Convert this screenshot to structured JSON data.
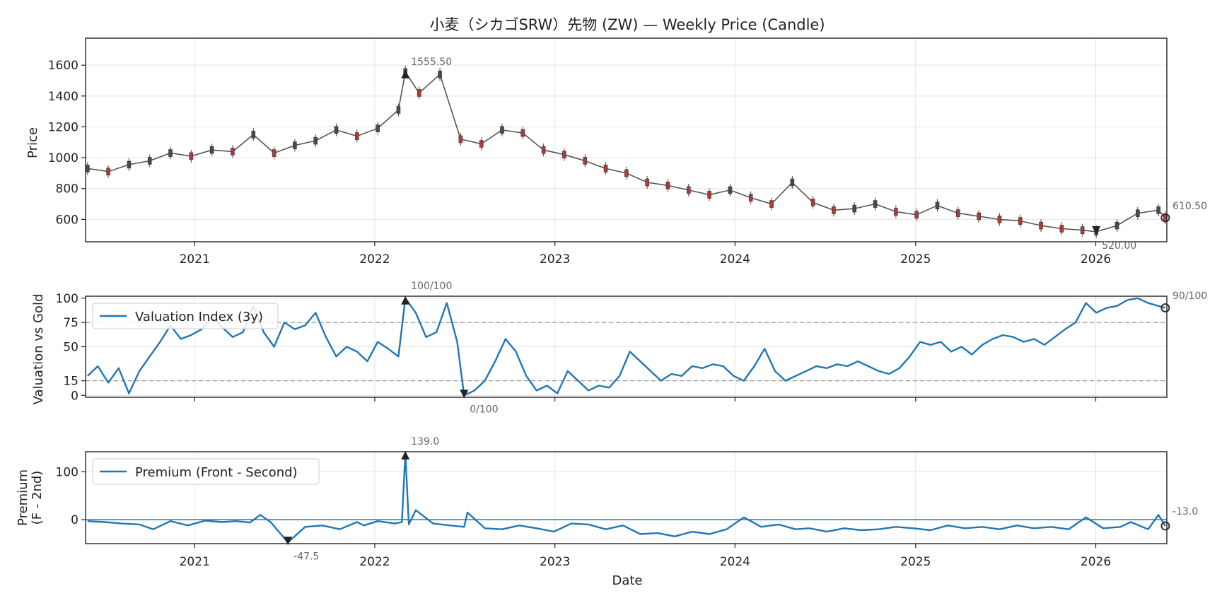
{
  "chart_data": [
    {
      "type": "candlestick",
      "title": "小麦（シカゴSRW）先物 (ZW) — Weekly Price (Candle)",
      "ylabel": "Price",
      "ylim": [
        455,
        1775
      ],
      "yticks": [
        600,
        800,
        1000,
        1200,
        1400,
        1600
      ],
      "xlim": [
        "2020-05-25",
        "2026-05-25"
      ],
      "xticks": [
        "2021",
        "2022",
        "2023",
        "2024",
        "2025",
        "2026"
      ],
      "grid": true,
      "series": [
        {
          "x": [
            "2020-05-29",
            "2020-07-10",
            "2020-08-21",
            "2020-10-02",
            "2020-11-13",
            "2020-12-25",
            "2021-02-05",
            "2021-03-19",
            "2021-04-30",
            "2021-06-11",
            "2021-07-23",
            "2021-09-03",
            "2021-10-15",
            "2021-11-26",
            "2022-01-07",
            "2022-02-18",
            "2022-03-04",
            "2022-04-01",
            "2022-05-13",
            "2022-06-24",
            "2022-08-05",
            "2022-09-16",
            "2022-10-28",
            "2022-12-09",
            "2023-01-20",
            "2023-03-03",
            "2023-04-14",
            "2023-05-26",
            "2023-07-07",
            "2023-08-18",
            "2023-09-29",
            "2023-11-10",
            "2023-12-22",
            "2024-02-02",
            "2024-03-15",
            "2024-04-26",
            "2024-06-07",
            "2024-07-19",
            "2024-08-30",
            "2024-10-11",
            "2024-11-22",
            "2025-01-03",
            "2025-02-14",
            "2025-03-28",
            "2025-05-09",
            "2025-06-20",
            "2025-08-01",
            "2025-09-12",
            "2025-10-24",
            "2025-12-05",
            "2026-01-02",
            "2026-02-13",
            "2026-03-27",
            "2026-05-08",
            "2026-05-22"
          ],
          "values": [
            930,
            910,
            955,
            980,
            1030,
            1010,
            1050,
            1040,
            1150,
            1030,
            1080,
            1110,
            1180,
            1140,
            1190,
            1310,
            1555.5,
            1420,
            1540,
            1120,
            1090,
            1180,
            1160,
            1050,
            1020,
            980,
            930,
            900,
            840,
            820,
            790,
            760,
            790,
            740,
            700,
            840,
            710,
            660,
            670,
            700,
            650,
            630,
            690,
            640,
            620,
            600,
            590,
            560,
            540,
            530,
            520,
            560,
            640,
            660,
            610.5
          ]
        }
      ],
      "annotations": {
        "max_label": "1555.50",
        "min_label": "520.00",
        "last_label": "610.50"
      }
    },
    {
      "type": "line",
      "ylabel": "Valuation vs Gold",
      "ylim": [
        -2,
        102
      ],
      "yticks": [
        0,
        15,
        50,
        75,
        100
      ],
      "reference_lines": [
        75,
        15
      ],
      "xlim": [
        "2020-05-25",
        "2026-05-25"
      ],
      "grid": true,
      "legend": "upper-left",
      "series": [
        {
          "name": "Valuation Index (3y)",
          "x": [
            "2020-05-29",
            "2020-06-19",
            "2020-07-10",
            "2020-07-31",
            "2020-08-21",
            "2020-09-11",
            "2020-10-02",
            "2020-10-23",
            "2020-11-13",
            "2020-12-04",
            "2020-12-25",
            "2021-01-15",
            "2021-02-05",
            "2021-02-26",
            "2021-03-19",
            "2021-04-09",
            "2021-04-30",
            "2021-05-21",
            "2021-06-11",
            "2021-07-02",
            "2021-07-23",
            "2021-08-13",
            "2021-09-03",
            "2021-09-24",
            "2021-10-15",
            "2021-11-05",
            "2021-11-26",
            "2021-12-17",
            "2022-01-07",
            "2022-01-28",
            "2022-02-18",
            "2022-03-04",
            "2022-03-25",
            "2022-04-15",
            "2022-05-06",
            "2022-05-27",
            "2022-06-17",
            "2022-07-01",
            "2022-07-22",
            "2022-08-12",
            "2022-09-02",
            "2022-09-23",
            "2022-10-14",
            "2022-11-04",
            "2022-11-25",
            "2022-12-16",
            "2023-01-06",
            "2023-01-27",
            "2023-02-17",
            "2023-03-10",
            "2023-03-31",
            "2023-04-21",
            "2023-05-12",
            "2023-06-02",
            "2023-06-23",
            "2023-07-14",
            "2023-08-04",
            "2023-08-25",
            "2023-09-15",
            "2023-10-06",
            "2023-10-27",
            "2023-11-17",
            "2023-12-08",
            "2023-12-29",
            "2024-01-19",
            "2024-02-09",
            "2024-03-01",
            "2024-03-22",
            "2024-04-12",
            "2024-05-03",
            "2024-05-24",
            "2024-06-14",
            "2024-07-05",
            "2024-07-26",
            "2024-08-16",
            "2024-09-06",
            "2024-09-27",
            "2024-10-18",
            "2024-11-08",
            "2024-11-29",
            "2024-12-20",
            "2025-01-10",
            "2025-01-31",
            "2025-02-21",
            "2025-03-14",
            "2025-04-04",
            "2025-04-25",
            "2025-05-16",
            "2025-06-06",
            "2025-06-27",
            "2025-07-18",
            "2025-08-08",
            "2025-08-29",
            "2025-09-19",
            "2025-10-10",
            "2025-10-31",
            "2025-11-21",
            "2025-12-12",
            "2026-01-02",
            "2026-01-23",
            "2026-02-13",
            "2026-03-06",
            "2026-03-27",
            "2026-04-17",
            "2026-05-08",
            "2026-05-22"
          ],
          "values": [
            20,
            30,
            13,
            28,
            2,
            25,
            40,
            55,
            72,
            58,
            62,
            68,
            80,
            70,
            60,
            65,
            92,
            65,
            50,
            75,
            68,
            72,
            85,
            60,
            40,
            50,
            45,
            35,
            55,
            48,
            40,
            100,
            85,
            60,
            65,
            95,
            55,
            0,
            5,
            15,
            35,
            58,
            45,
            20,
            5,
            10,
            2,
            25,
            15,
            5,
            10,
            8,
            20,
            45,
            35,
            25,
            15,
            22,
            20,
            30,
            28,
            32,
            30,
            20,
            15,
            30,
            48,
            25,
            15,
            20,
            25,
            30,
            28,
            32,
            30,
            35,
            30,
            25,
            22,
            28,
            40,
            55,
            52,
            55,
            45,
            50,
            42,
            52,
            58,
            62,
            60,
            55,
            58,
            52,
            60,
            68,
            75,
            95,
            85,
            90,
            92,
            98,
            100,
            95,
            92,
            90
          ]
        }
      ],
      "annotations": {
        "max_label": "100/100",
        "min_label": "0/100",
        "last_label": "90/100"
      }
    },
    {
      "type": "line",
      "ylabel": "Premium\n(F - 2nd)",
      "ylim": [
        -50,
        142
      ],
      "yticks": [
        0,
        100
      ],
      "reference_lines": [
        0
      ],
      "xlim": [
        "2020-05-25",
        "2026-05-25"
      ],
      "xlabel": "Date",
      "xticks": [
        "2021",
        "2022",
        "2023",
        "2024",
        "2025",
        "2026"
      ],
      "grid": true,
      "legend": "upper-left",
      "series": [
        {
          "name": "Premium (Front - Second)",
          "x": [
            "2020-05-29",
            "2020-07-03",
            "2020-08-07",
            "2020-09-11",
            "2020-10-09",
            "2020-11-13",
            "2020-12-18",
            "2021-01-22",
            "2021-02-26",
            "2021-03-26",
            "2021-04-23",
            "2021-05-14",
            "2021-06-04",
            "2021-07-09",
            "2021-08-13",
            "2021-09-17",
            "2021-10-22",
            "2021-11-26",
            "2021-12-10",
            "2022-01-07",
            "2022-02-11",
            "2022-02-25",
            "2022-03-04",
            "2022-03-11",
            "2022-03-25",
            "2022-04-29",
            "2022-06-03",
            "2022-07-01",
            "2022-07-08",
            "2022-08-12",
            "2022-09-16",
            "2022-10-21",
            "2022-11-25",
            "2022-12-30",
            "2023-02-03",
            "2023-03-10",
            "2023-04-14",
            "2023-05-19",
            "2023-06-23",
            "2023-07-28",
            "2023-09-01",
            "2023-10-06",
            "2023-11-10",
            "2023-12-15",
            "2024-01-19",
            "2024-02-23",
            "2024-03-29",
            "2024-05-03",
            "2024-05-31",
            "2024-07-05",
            "2024-08-09",
            "2024-09-13",
            "2024-10-18",
            "2024-11-22",
            "2024-12-27",
            "2025-01-31",
            "2025-03-07",
            "2025-04-11",
            "2025-05-16",
            "2025-06-20",
            "2025-07-25",
            "2025-08-29",
            "2025-10-03",
            "2025-11-07",
            "2025-12-12",
            "2026-01-16",
            "2026-02-20",
            "2026-03-13",
            "2026-04-17",
            "2026-05-08",
            "2026-05-22"
          ],
          "values": [
            -3,
            -5,
            -8,
            -10,
            -20,
            -3,
            -12,
            -2,
            -5,
            -3,
            -6,
            10,
            -5,
            -47.5,
            -15,
            -12,
            -20,
            -5,
            -12,
            -3,
            -8,
            -5,
            139,
            -10,
            20,
            -8,
            -12,
            -15,
            15,
            -18,
            -20,
            -12,
            -18,
            -25,
            -8,
            -10,
            -20,
            -12,
            -30,
            -28,
            -35,
            -25,
            -30,
            -20,
            5,
            -15,
            -10,
            -20,
            -18,
            -25,
            -18,
            -22,
            -20,
            -15,
            -18,
            -22,
            -12,
            -18,
            -15,
            -20,
            -12,
            -18,
            -15,
            -20,
            5,
            -18,
            -15,
            -5,
            -20,
            10,
            -13
          ]
        }
      ],
      "annotations": {
        "max_label": "139.0",
        "min_label": "-47.5",
        "last_label": "-13.0"
      }
    }
  ]
}
